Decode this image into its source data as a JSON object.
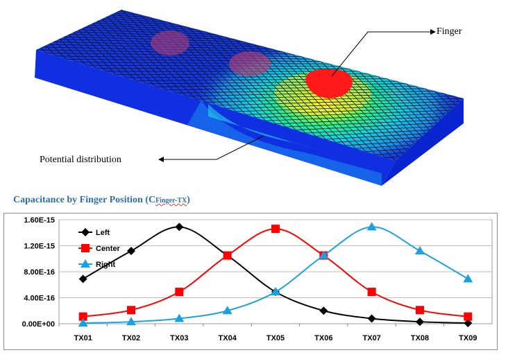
{
  "illustration": {
    "finger_label": "Finger",
    "potential_label": "Potential distribution",
    "colors": {
      "board": "#1030e8",
      "board_side": "#0b2ad8",
      "finger": "#ff1a1a",
      "grid": "#111111"
    }
  },
  "chart_title": {
    "main": "Capacitance by Finger Position (C",
    "sub": "Finger-TX",
    "close": ")"
  },
  "chart_data": {
    "type": "line",
    "title": "Capacitance by Finger Position (CFinger-TX)",
    "xlabel": "",
    "ylabel": "",
    "categories": [
      "TX01",
      "TX02",
      "TX03",
      "TX04",
      "TX05",
      "TX06",
      "TX07",
      "TX08",
      "TX09"
    ],
    "ylim": [
      0,
      1.6e-15
    ],
    "yticks": [
      0,
      4e-16,
      8e-16,
      1.2e-15,
      1.6e-15
    ],
    "ytick_labels": [
      "0.00E+00",
      "4.00E-16",
      "8.00E-16",
      "1.20E-15",
      "1.60E-15"
    ],
    "grid": true,
    "legend_position": "top-left",
    "series": [
      {
        "name": "Left",
        "color": "#000000",
        "marker": "diamond",
        "values": [
          6.9e-16,
          1.12e-15,
          1.49e-15,
          1.05e-15,
          4.9e-16,
          2e-16,
          8e-17,
          3e-17,
          1e-17
        ]
      },
      {
        "name": "Center",
        "color": "#ff0000",
        "marker": "square",
        "values": [
          1.1e-16,
          2.1e-16,
          4.9e-16,
          1.05e-15,
          1.46e-15,
          1.05e-15,
          4.9e-16,
          2.1e-16,
          1.1e-16
        ]
      },
      {
        "name": "Right",
        "color": "#1ba1e2",
        "marker": "triangle",
        "values": [
          1e-17,
          3e-17,
          8e-17,
          2e-16,
          4.9e-16,
          1.05e-15,
          1.49e-15,
          1.12e-15,
          6.9e-16
        ]
      }
    ]
  }
}
